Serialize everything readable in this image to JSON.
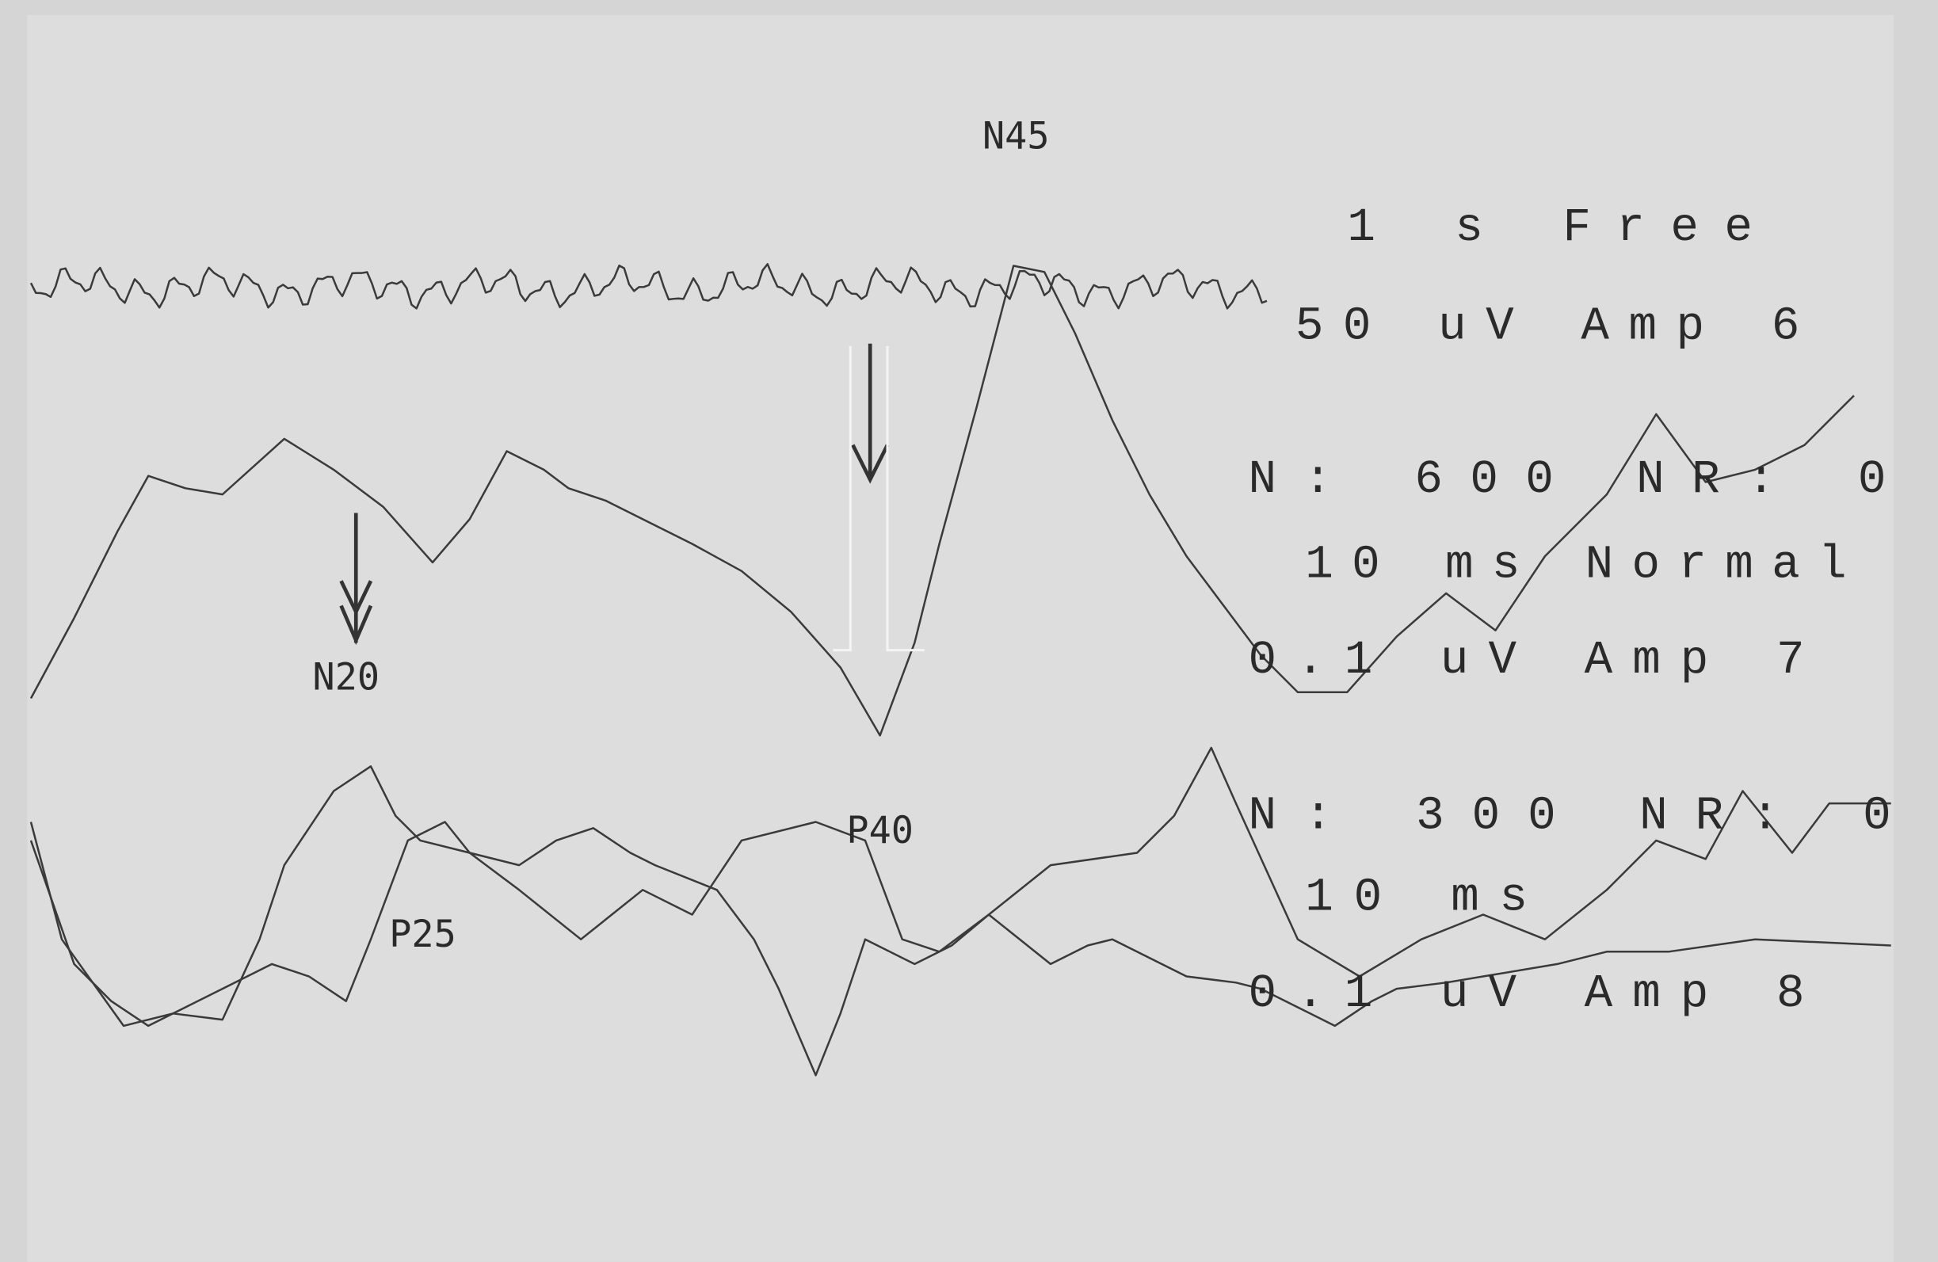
{
  "peaks": {
    "n45": "N45",
    "n20": "N20",
    "p25": "P25",
    "p40": "P40"
  },
  "settings": [
    "1 s Free",
    "50 uV Amp 6",
    "N: 600 NR: 0",
    "10 ms Normal",
    "0.1 uV Amp 7",
    "N: 300 NR: 0",
    "10 ms",
    "0.1 uV Amp 8"
  ]
}
